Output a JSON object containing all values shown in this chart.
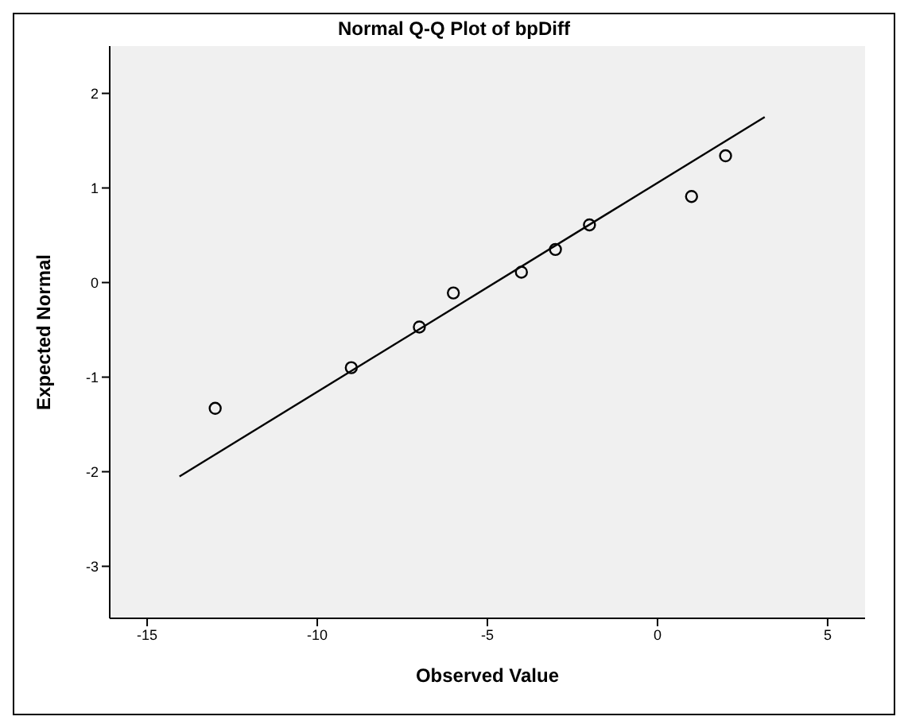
{
  "chart_data": {
    "type": "scatter",
    "title": "Normal Q-Q Plot of bpDiff",
    "xlabel": "Observed Value",
    "ylabel": "Expected Normal",
    "xlim": [
      -16.1,
      6.1
    ],
    "xticks": [
      -15,
      -10,
      -5,
      0,
      5
    ],
    "ylim": [
      -3.55,
      2.5
    ],
    "yticks": [
      -3,
      -2,
      -1,
      0,
      1,
      2
    ],
    "grid": false,
    "series": [
      {
        "marker": "circle",
        "color": "#000000",
        "x": [
          -13,
          -9,
          -7,
          -6,
          -4,
          -3,
          -2,
          1,
          2
        ],
        "values": [
          -1.33,
          -0.9,
          -0.47,
          -0.11,
          0.11,
          0.35,
          0.61,
          0.91,
          1.34
        ]
      },
      {
        "type": "line",
        "marker": "none",
        "color": "#000000",
        "x": [
          -14.05,
          3.15
        ],
        "values": [
          -2.05,
          1.75
        ]
      }
    ]
  }
}
